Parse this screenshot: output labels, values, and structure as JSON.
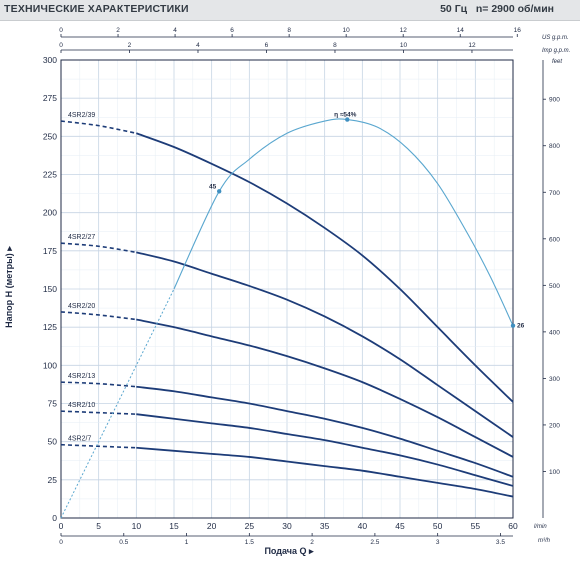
{
  "header": {
    "title": "ТЕХНИЧЕСКИЕ ХАРАКТЕРИСТИКИ",
    "freq": "50 Гц",
    "speed": "n= 2900 об/мин"
  },
  "axes": {
    "y_title": "Напор H (метры)",
    "y_title_arrow": "▸",
    "x_title": "Подача Q",
    "x_title_arrow": "▸",
    "unit_lmin": "l/min",
    "unit_m3h": "m³/h",
    "unit_feet": "feet",
    "unit_us": "US g.p.m.",
    "unit_imp": "Imp g.p.m."
  },
  "chart_data": {
    "type": "line",
    "xlabel": "Подача Q",
    "ylabel": "Напор H (метры)",
    "xlim": [
      0,
      60
    ],
    "ylim": [
      0,
      300
    ],
    "grid": true,
    "x_ticks": [
      "0",
      "5",
      "10",
      "15",
      "20",
      "25",
      "30",
      "35",
      "40",
      "45",
      "50",
      "55",
      "60"
    ],
    "y_ticks": [
      "0",
      "25",
      "50",
      "75",
      "100",
      "125",
      "150",
      "175",
      "200",
      "225",
      "250",
      "275",
      "300"
    ],
    "top_us_ticks": [
      "0",
      "2",
      "4",
      "6",
      "8",
      "10",
      "12",
      "14",
      "16"
    ],
    "top_imp_ticks": [
      "0",
      "2",
      "4",
      "6",
      "8",
      "10",
      "12"
    ],
    "bottom_m3h_ticks": [
      "0",
      "0.5",
      "1",
      "1.5",
      "2",
      "2.5",
      "3",
      "3.5"
    ],
    "right_feet_ticks": [
      "100",
      "200",
      "300",
      "400",
      "500",
      "600",
      "700",
      "800",
      "900"
    ],
    "dashed_until_x": 10,
    "series": [
      {
        "name": "4SR2/39",
        "x": [
          0,
          5,
          10,
          15,
          20,
          25,
          30,
          35,
          40,
          45,
          50,
          55,
          60
        ],
        "y": [
          260,
          257,
          252,
          243,
          232,
          220,
          206,
          190,
          172,
          150,
          125,
          100,
          76
        ]
      },
      {
        "name": "4SR2/27",
        "x": [
          0,
          5,
          10,
          15,
          20,
          25,
          30,
          35,
          40,
          45,
          50,
          55,
          60
        ],
        "y": [
          180,
          178,
          174,
          168,
          160,
          152,
          143,
          132,
          119,
          104,
          87,
          70,
          53
        ]
      },
      {
        "name": "4SR2/20",
        "x": [
          0,
          5,
          10,
          15,
          20,
          25,
          30,
          35,
          40,
          45,
          50,
          55,
          60
        ],
        "y": [
          135,
          133,
          130,
          125,
          119,
          113,
          106,
          98,
          89,
          78,
          66,
          53,
          40
        ]
      },
      {
        "name": "4SR2/13",
        "x": [
          0,
          5,
          10,
          15,
          20,
          25,
          30,
          35,
          40,
          45,
          50,
          55,
          60
        ],
        "y": [
          89,
          88,
          86,
          83,
          79,
          75,
          70,
          65,
          59,
          52,
          44,
          36,
          27
        ]
      },
      {
        "name": "4SR2/10",
        "x": [
          0,
          5,
          10,
          15,
          20,
          25,
          30,
          35,
          40,
          45,
          50,
          55,
          60
        ],
        "y": [
          70,
          69,
          68,
          65,
          62,
          59,
          55,
          51,
          46,
          41,
          35,
          28,
          21
        ]
      },
      {
        "name": "4SR2/7",
        "x": [
          0,
          5,
          10,
          15,
          20,
          25,
          30,
          35,
          40,
          45,
          50,
          55,
          60
        ],
        "y": [
          48,
          47,
          46,
          44,
          42,
          40,
          37,
          34,
          31,
          27,
          23,
          19,
          14
        ]
      }
    ],
    "efficiency_curve": {
      "x": [
        0,
        5,
        10,
        15,
        21,
        25,
        30,
        35,
        38,
        42,
        46,
        50,
        54,
        57,
        60
      ],
      "y": [
        0,
        50,
        100,
        150,
        214,
        235,
        252,
        260,
        261,
        256,
        242,
        219,
        186,
        158,
        126
      ],
      "labels": [
        {
          "text": "45",
          "x": 21,
          "y": 214
        },
        {
          "text": "η ≈54%",
          "x": 38,
          "y": 261
        },
        {
          "text": "26",
          "x": 60,
          "y": 126
        }
      ]
    }
  }
}
